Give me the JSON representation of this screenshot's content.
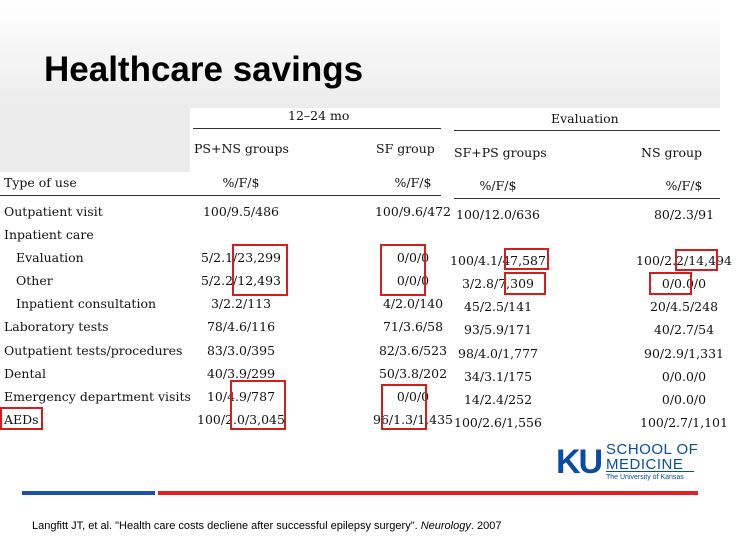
{
  "slide": {
    "title": "Healthcare savings",
    "citation_prefix": "Langfitt JT, et al. \"Health care costs decliene after successful epilepsy surgery\". ",
    "citation_journal": "Neurology",
    "citation_suffix": ". 2007"
  },
  "table": {
    "period_1224": "12–24 mo",
    "period_eval": "Evaluation",
    "groups": [
      "PS+NS groups",
      "SF group",
      "SF+PS groups",
      "NS group"
    ],
    "type_header": "Type of use",
    "unit_headers": [
      "%/F/$",
      "%/F/$",
      "%/F/$",
      "%/F/$"
    ],
    "rows": [
      {
        "label": "Outpatient visit",
        "values": [
          "100/9.5/486",
          "100/9.6/472",
          "100/12.0/636",
          "80/2.3/91"
        ]
      },
      {
        "label": "Inpatient care",
        "values": [
          "",
          "",
          "",
          ""
        ]
      },
      {
        "label": "Evaluation",
        "values": [
          "5/2.1/23,299",
          "0/0/0",
          "100/4.1/47,587",
          "100/2.2/14,494"
        ]
      },
      {
        "label": "Other",
        "values": [
          "5/2.2/12,493",
          "0/0/0",
          "3/2.8/7,309",
          "0/0.0/0"
        ]
      },
      {
        "label": "Inpatient consultation",
        "values": [
          "3/2.2/113",
          "4/2.0/140",
          "45/2.5/141",
          "20/4.5/248"
        ]
      },
      {
        "label": "Laboratory tests",
        "values": [
          "78/4.6/116",
          "71/3.6/58",
          "93/5.9/171",
          "40/2.7/54"
        ]
      },
      {
        "label": "Outpatient tests/procedures",
        "values": [
          "83/3.0/395",
          "82/3.6/523",
          "98/4.0/1,777",
          "90/2.9/1,331"
        ]
      },
      {
        "label": "Dental",
        "values": [
          "40/3.9/299",
          "50/3.8/202",
          "34/3.1/175",
          "0/0.0/0"
        ]
      },
      {
        "label": "Emergency department visits",
        "values": [
          "10/4.9/787",
          "0/0/0",
          "14/2.4/252",
          "0/0.0/0"
        ]
      },
      {
        "label": "AEDs",
        "values": [
          "100/2.0/3,045",
          "96/1.3/1,435",
          "100/2.6/1,556",
          "100/2.7/1,101"
        ]
      }
    ]
  },
  "logo": {
    "mark": "KU",
    "line1": "SCHOOL OF",
    "line2": "MEDICINE",
    "line3": "The University of Kansas",
    "colors": {
      "mark": "#0a4ca3"
    }
  },
  "colors": {
    "highlight_box": "#d41e1e",
    "bar_blue": "#1c4fb0",
    "bar_red": "#e51e25"
  }
}
